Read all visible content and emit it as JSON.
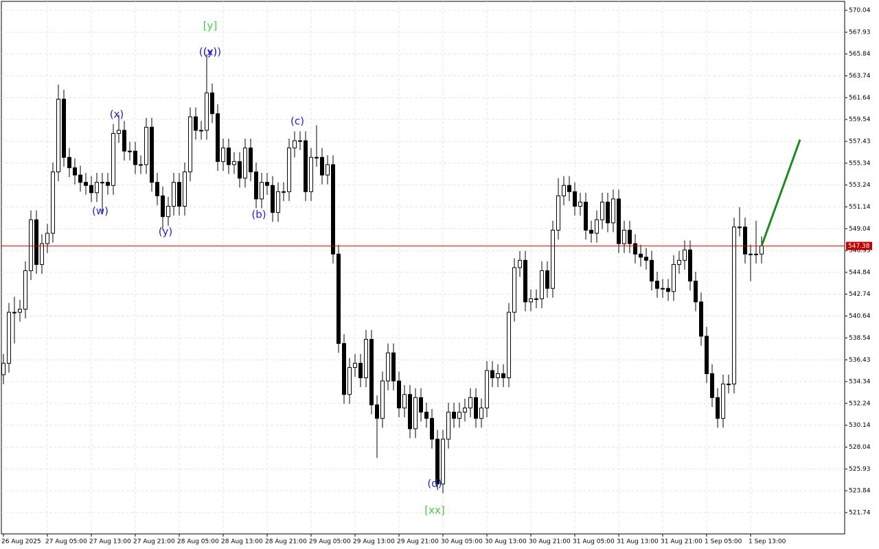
{
  "chart_data": {
    "type": "candlestick",
    "categories": [
      "26 Aug 2025",
      null,
      null,
      null,
      null,
      null,
      null,
      null,
      "27 Aug 05:00",
      null,
      null,
      null,
      null,
      null,
      null,
      null,
      "27 Aug 13:00",
      null,
      null,
      null,
      null,
      null,
      null,
      null,
      "27 Aug 21:00",
      null,
      null,
      null,
      null,
      null,
      null,
      null,
      "28 Aug 05:00",
      null,
      null,
      null,
      null,
      null,
      null,
      null,
      "28 Aug 13:00",
      null,
      null,
      null,
      null,
      null,
      null,
      null,
      "28 Aug 21:00",
      null,
      null,
      null,
      null,
      null,
      null,
      null,
      "29 Aug 05:00",
      null,
      null,
      null,
      null,
      null,
      null,
      null,
      "29 Aug 13:00",
      null,
      null,
      null,
      null,
      null,
      null,
      null,
      "29 Aug 21:00",
      null,
      null,
      null,
      null,
      null,
      null,
      null,
      "30 Aug 05:00",
      null,
      null,
      null,
      null,
      null,
      null,
      null,
      "30 Aug 13:00",
      null,
      null,
      null,
      null,
      null,
      null,
      null,
      "30 Aug 21:00",
      null,
      null,
      null,
      null,
      null,
      null,
      null,
      "31 Aug 05:00",
      null,
      null,
      null,
      null,
      null,
      null,
      null,
      "31 Aug 13:00",
      null,
      null,
      null,
      null,
      null,
      null,
      null,
      "31 Aug 21:00",
      null,
      null,
      null,
      null,
      null,
      null,
      null,
      "1 Sep 05:00",
      null,
      null,
      null,
      null,
      null,
      null,
      null,
      "1 Sep 13:00",
      null,
      null
    ],
    "open": [
      535.0,
      536.1,
      541.0,
      541.0,
      541.3,
      545.0,
      549.9,
      545.6,
      547.6,
      548.6,
      554.5,
      561.5,
      555.9,
      554.9,
      554.2,
      553.5,
      553.2,
      552.5,
      553.5,
      553.5,
      553.2,
      558.2,
      558.5,
      556.5,
      556.5,
      555.2,
      555.2,
      558.8,
      553.5,
      552.2,
      550.2,
      551.2,
      553.5,
      551.2,
      554.5,
      559.8,
      558.5,
      558.5,
      562.1,
      560.1,
      555.5,
      556.8,
      555.2,
      555.5,
      553.9,
      556.8,
      554.5,
      551.9,
      553.5,
      553.2,
      550.6,
      552.6,
      552.6,
      556.8,
      557.5,
      557.5,
      552.6,
      555.9,
      555.9,
      554.2,
      555.2,
      546.6,
      538.0,
      533.1,
      535.7,
      536.1,
      534.7,
      538.4,
      532.1,
      530.8,
      534.4,
      537.1,
      534.4,
      531.8,
      533.1,
      529.8,
      532.8,
      531.4,
      530.8,
      528.8,
      524.5,
      528.8,
      531.4,
      530.8,
      531.4,
      531.8,
      532.8,
      530.8,
      531.8,
      535.4,
      534.7,
      535.1,
      534.7,
      541.0,
      545.3,
      546.0,
      542.0,
      542.3,
      542.3,
      545.0,
      543.3,
      548.9,
      552.2,
      553.2,
      552.6,
      551.2,
      551.6,
      548.9,
      548.6,
      549.9,
      551.6,
      549.6,
      551.9,
      547.6,
      548.9,
      547.6,
      546.6,
      546.3,
      546.0,
      544.0,
      543.3,
      543.3,
      543.0,
      545.6,
      546.0,
      547.0,
      544.0,
      542.0,
      538.7,
      535.1,
      532.8,
      530.8,
      534.1,
      534.1,
      549.2,
      549.2,
      546.6,
      546.6,
      546.6
    ],
    "high": [
      537.0,
      541.9,
      542.5,
      542.2,
      545.9,
      550.8,
      550.8,
      548.5,
      549.5,
      555.4,
      562.9,
      562.4,
      556.8,
      555.8,
      555.1,
      554.4,
      554.1,
      554.4,
      554.4,
      554.4,
      559.1,
      560.0,
      559.4,
      557.4,
      557.4,
      556.1,
      559.7,
      559.7,
      554.4,
      553.1,
      552.1,
      554.4,
      554.4,
      555.4,
      560.7,
      560.7,
      559.4,
      565.8,
      563.0,
      561.0,
      557.7,
      557.7,
      556.4,
      556.4,
      557.7,
      557.7,
      555.4,
      554.4,
      554.4,
      554.1,
      553.5,
      553.5,
      557.7,
      558.4,
      558.4,
      558.4,
      556.8,
      559.0,
      556.8,
      556.1,
      556.1,
      547.5,
      538.9,
      536.6,
      537.0,
      537.0,
      539.3,
      539.3,
      533.0,
      535.3,
      538.0,
      538.0,
      535.3,
      534.0,
      534.0,
      533.7,
      533.7,
      532.3,
      531.7,
      529.7,
      529.7,
      532.3,
      532.3,
      532.3,
      532.7,
      533.7,
      533.7,
      532.7,
      536.3,
      536.3,
      536.0,
      536.0,
      541.9,
      546.2,
      546.9,
      546.9,
      543.2,
      543.2,
      545.9,
      545.9,
      549.8,
      553.9,
      554.1,
      554.1,
      553.5,
      552.5,
      552.5,
      549.8,
      550.8,
      552.5,
      552.5,
      552.8,
      552.8,
      549.8,
      549.8,
      548.5,
      547.5,
      547.2,
      546.9,
      544.9,
      544.2,
      544.2,
      546.5,
      546.9,
      547.9,
      547.9,
      544.9,
      542.9,
      539.6,
      536.0,
      533.7,
      535.0,
      535.0,
      550.1,
      551.1,
      550.1,
      547.5,
      549.8,
      548.3
    ],
    "low": [
      534.1,
      535.2,
      538.0,
      540.1,
      540.4,
      544.1,
      544.7,
      544.7,
      546.7,
      547.7,
      553.6,
      555.0,
      554.0,
      553.3,
      552.6,
      552.3,
      551.6,
      551.6,
      550.5,
      552.3,
      552.3,
      557.3,
      555.6,
      555.6,
      554.3,
      554.3,
      554.3,
      552.6,
      551.3,
      548.9,
      549.3,
      550.3,
      550.3,
      550.3,
      553.6,
      557.6,
      557.6,
      557.6,
      559.2,
      554.6,
      554.6,
      554.3,
      554.3,
      553.0,
      553.0,
      553.6,
      551.0,
      551.0,
      552.3,
      549.7,
      549.7,
      551.7,
      551.7,
      555.9,
      556.6,
      551.7,
      551.7,
      555.0,
      553.3,
      553.3,
      545.7,
      537.1,
      532.2,
      532.2,
      534.8,
      533.8,
      533.8,
      531.2,
      527.0,
      529.9,
      533.5,
      533.5,
      530.9,
      530.9,
      528.9,
      528.9,
      530.5,
      529.9,
      527.9,
      523.9,
      523.6,
      527.9,
      529.9,
      529.9,
      530.5,
      530.9,
      529.9,
      529.9,
      530.9,
      533.8,
      533.8,
      533.8,
      533.8,
      540.1,
      544.4,
      541.1,
      541.1,
      541.4,
      541.4,
      542.4,
      542.4,
      548.0,
      551.3,
      551.7,
      550.3,
      550.3,
      548.0,
      547.7,
      547.7,
      549.0,
      548.7,
      548.7,
      546.7,
      546.7,
      546.7,
      545.7,
      545.4,
      545.1,
      543.1,
      542.4,
      542.4,
      542.1,
      542.1,
      544.7,
      545.1,
      543.1,
      541.1,
      537.8,
      534.2,
      531.9,
      529.9,
      529.9,
      533.2,
      533.2,
      548.3,
      545.7,
      544.0,
      545.7,
      545.7
    ],
    "close": [
      536.1,
      541.0,
      541.0,
      541.3,
      545.0,
      549.9,
      545.6,
      547.6,
      548.6,
      554.5,
      561.5,
      555.9,
      554.9,
      554.2,
      553.5,
      553.2,
      552.5,
      553.5,
      553.5,
      553.2,
      558.2,
      558.5,
      556.5,
      556.5,
      555.2,
      555.2,
      558.8,
      553.5,
      552.2,
      550.2,
      551.2,
      553.5,
      551.2,
      554.5,
      559.8,
      558.5,
      558.5,
      562.1,
      560.1,
      555.5,
      556.8,
      555.2,
      555.5,
      553.9,
      556.8,
      554.5,
      551.9,
      553.5,
      553.2,
      550.6,
      552.6,
      552.6,
      556.8,
      557.5,
      557.5,
      552.6,
      555.9,
      555.9,
      554.2,
      555.2,
      546.6,
      538.0,
      533.1,
      535.7,
      536.1,
      534.7,
      538.4,
      532.1,
      530.8,
      534.4,
      537.1,
      534.4,
      531.8,
      533.1,
      529.8,
      532.8,
      531.4,
      530.8,
      528.8,
      524.5,
      528.8,
      531.4,
      530.8,
      531.4,
      531.8,
      532.8,
      530.8,
      531.8,
      535.4,
      534.7,
      535.1,
      534.7,
      541.0,
      545.3,
      546.0,
      542.0,
      542.3,
      542.3,
      545.0,
      543.3,
      548.9,
      552.2,
      553.2,
      552.6,
      551.2,
      551.6,
      548.9,
      548.6,
      549.9,
      551.6,
      549.6,
      551.9,
      547.6,
      548.9,
      547.6,
      546.6,
      546.3,
      546.0,
      544.0,
      543.3,
      543.3,
      543.0,
      545.6,
      546.0,
      547.0,
      544.0,
      542.0,
      538.7,
      535.1,
      532.8,
      530.8,
      534.1,
      534.1,
      549.2,
      549.2,
      546.6,
      546.6,
      546.6,
      547.38
    ],
    "bull_color": "#ffffff",
    "bear_color": "#000000",
    "outline_color": "#000000",
    "ylim": [
      519.69,
      570.9
    ],
    "yticks": [
      570.04,
      567.93,
      565.84,
      563.74,
      561.64,
      559.54,
      557.43,
      555.34,
      553.24,
      551.14,
      549.04,
      546.93,
      544.84,
      542.74,
      540.64,
      538.54,
      536.43,
      534.34,
      532.24,
      530.14,
      528.04,
      525.93,
      523.84,
      521.74
    ],
    "grid": true,
    "current_price": {
      "value": 547.38,
      "color": "#c00000"
    },
    "forecast": {
      "x": [
        138,
        145
      ],
      "values": [
        547.38,
        557.6
      ],
      "color": "#1a8a1a"
    },
    "annotations": [
      {
        "text": "[y]",
        "color": "#44cc44"
      },
      {
        "text": "((x))",
        "color": "#2222cc"
      },
      {
        "text": "(y)",
        "color": "#2222cc"
      },
      {
        "text": "(x)",
        "color": "#2222cc"
      },
      {
        "text": "(w)",
        "color": "#2222cc"
      },
      {
        "text": "(y)",
        "color": "#2222cc"
      },
      {
        "text": "(b)",
        "color": "#2222cc"
      },
      {
        "text": "(c)",
        "color": "#2222cc"
      },
      {
        "text": "(d)",
        "color": "#2222cc"
      },
      {
        "text": "[xx]",
        "color": "#44cc44"
      }
    ]
  }
}
